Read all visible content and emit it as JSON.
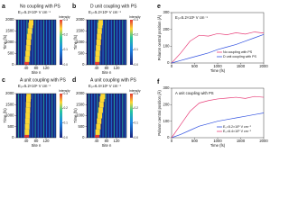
{
  "chart_data": [
    {
      "type": "heatmap",
      "panel": "a",
      "title": "No coupling with PS",
      "subtitle": "E₀=5.2×10⁵ V cm⁻¹",
      "xlabel": "Site n",
      "ylabel": "Time (fs)",
      "xlim": [
        0,
        160
      ],
      "xticks": [
        40,
        80,
        120
      ],
      "ylim": [
        0,
        2000
      ],
      "yticks": [
        0,
        500,
        1000,
        1500,
        2000
      ],
      "colorbar_label": "Intensity",
      "clim": [
        0,
        0.3
      ],
      "cticks": [
        {
          "value": 0,
          "label": "0.0"
        },
        {
          "value": 0.1,
          "label": "0.1"
        },
        {
          "value": 0.2,
          "label": "0.2"
        },
        {
          "value": 0.3,
          "label": "0.3"
        }
      ],
      "y": [
        0,
        250,
        500,
        750,
        1000,
        1250,
        1500,
        1750,
        2000
      ],
      "centers": [
        42,
        44,
        46,
        48,
        50,
        52,
        55,
        58,
        60
      ]
    },
    {
      "type": "heatmap",
      "panel": "b",
      "title": "D unit coupling with PS",
      "subtitle": "E₀=5.2×10⁵ V cm⁻¹",
      "xlabel": "Site n",
      "ylabel": "Time (fs)",
      "xlim": [
        0,
        160
      ],
      "xticks": [
        40,
        80,
        120
      ],
      "ylim": [
        0,
        2000
      ],
      "yticks": [
        0,
        500,
        1000,
        1500,
        2000
      ],
      "colorbar_label": "Intensity",
      "clim": [
        0,
        0.3
      ],
      "cticks": [
        {
          "value": 0,
          "label": "0.0"
        },
        {
          "value": 0.1,
          "label": "0.1"
        },
        {
          "value": 0.2,
          "label": "0.2"
        },
        {
          "value": 0.3,
          "label": "0.3"
        }
      ],
      "y": [
        0,
        250,
        500,
        750,
        1000,
        1250,
        1500,
        1750,
        2000
      ],
      "centers": [
        42,
        43,
        44,
        46,
        48,
        50,
        52,
        54,
        56
      ]
    },
    {
      "type": "heatmap",
      "panel": "c",
      "title": "A unit coupling with PS",
      "subtitle": "E₀=5.2×10⁵ V cm⁻¹",
      "xlabel": "Site n",
      "ylabel": "Time (fs)",
      "xlim": [
        0,
        160
      ],
      "xticks": [
        40,
        80,
        120
      ],
      "ylim": [
        0,
        2000
      ],
      "yticks": [
        0,
        500,
        1000,
        1500,
        2000
      ],
      "colorbar_label": "Intensity",
      "clim": [
        0,
        0.3
      ],
      "cticks": [
        {
          "value": 0,
          "label": "0.0"
        },
        {
          "value": 0.1,
          "label": "0.1"
        },
        {
          "value": 0.2,
          "label": "0.2"
        },
        {
          "value": 0.3,
          "label": "0.3"
        }
      ],
      "y": [
        0,
        250,
        500,
        750,
        1000,
        1250,
        1500,
        1750,
        2000
      ],
      "centers": [
        42,
        43,
        44,
        45,
        46,
        47,
        48,
        49,
        50
      ]
    },
    {
      "type": "heatmap",
      "panel": "d",
      "title": "A unit coupling with PS",
      "subtitle": "E₀=6.4×10⁵ V cm⁻¹",
      "xlabel": "Site n",
      "ylabel": "Time (fs)",
      "xlim": [
        0,
        160
      ],
      "xticks": [
        40,
        80,
        120
      ],
      "ylim": [
        0,
        2000
      ],
      "yticks": [
        0,
        500,
        1000,
        1500,
        2000
      ],
      "colorbar_label": "Intensity",
      "clim": [
        0,
        0.3
      ],
      "cticks": [
        {
          "value": 0,
          "label": "0.0"
        },
        {
          "value": 0.1,
          "label": "0.1"
        },
        {
          "value": 0.2,
          "label": "0.2"
        },
        {
          "value": 0.3,
          "label": "0.3"
        }
      ],
      "y": [
        0,
        250,
        500,
        750,
        1000,
        1250,
        1500,
        1750,
        2000
      ],
      "centers": [
        42,
        44,
        47,
        50,
        53,
        56,
        59,
        62,
        65
      ]
    },
    {
      "type": "line",
      "panel": "e",
      "annotation": "E₀=5.2×10⁵ V cm⁻¹",
      "xlabel": "Time (fs)",
      "ylabel": "Polaron central position (Å)",
      "xlim": [
        0,
        2000
      ],
      "xticks": [
        0,
        500,
        1000,
        1500,
        2000
      ],
      "ylim": [
        0,
        300
      ],
      "yticks": [
        0,
        100,
        200,
        300
      ],
      "x": [
        0,
        200,
        400,
        600,
        800,
        1000,
        1200,
        1400,
        1600,
        1800,
        2000
      ],
      "series": [
        {
          "name": "No coupling with PS",
          "color": "#e8407a",
          "values": [
            0,
            60,
            130,
            165,
            160,
            175,
            168,
            180,
            172,
            185,
            178
          ]
        },
        {
          "name": "D unit coupling with PS",
          "color": "#3050e0",
          "values": [
            0,
            15,
            30,
            45,
            60,
            80,
            95,
            110,
            130,
            150,
            170
          ]
        }
      ]
    },
    {
      "type": "line",
      "panel": "f",
      "title": "A unit coupling with PS",
      "xlabel": "Time (fs)",
      "ylabel": "Polaron central position (Å)",
      "xlim": [
        0,
        2000
      ],
      "xticks": [
        0,
        500,
        1000,
        1500,
        2000
      ],
      "ylim": [
        0,
        300
      ],
      "yticks": [
        0,
        100,
        200,
        300
      ],
      "x": [
        0,
        200,
        400,
        600,
        800,
        1000,
        1200,
        1400,
        1600,
        1800,
        2000
      ],
      "series": [
        {
          "name": "E₀=5.2×10⁵ V cm⁻¹",
          "color": "#3050e0",
          "values": [
            0,
            20,
            45,
            70,
            85,
            100,
            110,
            120,
            130,
            140,
            150
          ]
        },
        {
          "name": "E₀=6.4×10⁵ V cm⁻¹",
          "color": "#e8407a",
          "values": [
            0,
            80,
            160,
            210,
            225,
            235,
            240,
            245,
            238,
            250,
            245
          ]
        }
      ]
    }
  ]
}
